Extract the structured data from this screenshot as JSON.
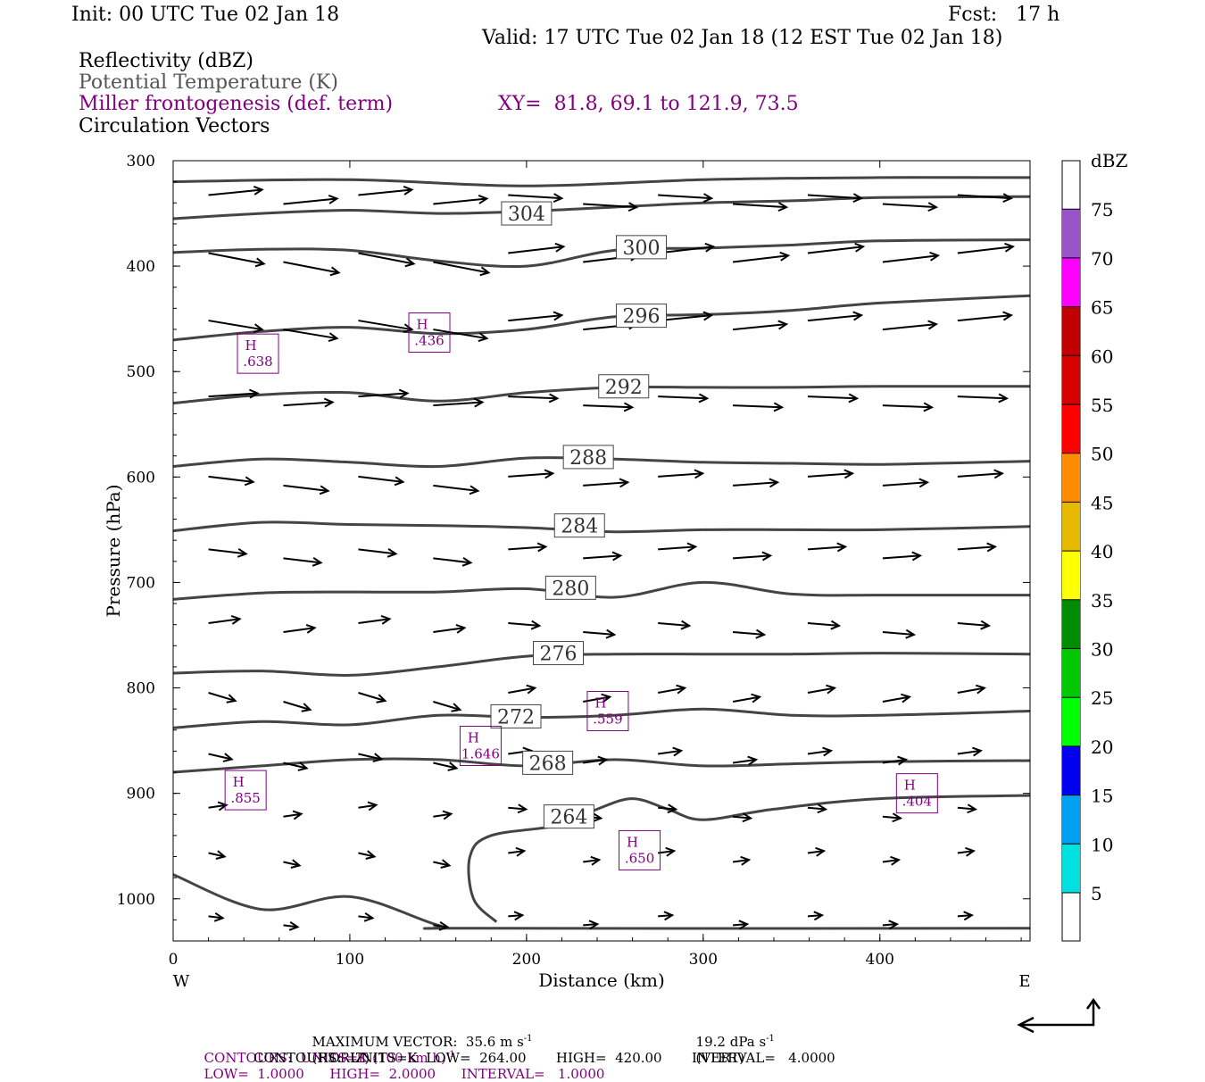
{
  "header": {
    "init": "Init: 00 UTC Tue 02 Jan 18",
    "fcst": "Fcst:   17 h",
    "valid": "Valid: 17 UTC Tue 02 Jan 18 (12 EST Tue 02 Jan 18)"
  },
  "fields": {
    "reflectivity": "Reflectivity (dBZ)",
    "theta": "Potential Temperature (K)",
    "frontogenesis": "Miller frontogenesis (def. term)",
    "xy": "XY=  81.8, 69.1 to 121.9, 73.5",
    "circulation": "Circulation Vectors"
  },
  "footer": {
    "max_vector": "MAXIMUM VECTOR:  35.6 m s",
    "max_vector_exp": "-1",
    "max_vector_horiz": "(HORIZ)",
    "max_vector_vert": "19.2 dPa s",
    "max_vector_vert_exp": "-1",
    "max_vector_vert_label": "(VERT)",
    "contours1_a": "CONTOURS:  UNITS=K (100 km h)",
    "contours1_exp": "-1",
    "contours1_b": "LOW=  1.0000      HIGH=  2.0000      INTERVAL=   1.0000",
    "contours2": "CONTOURS:  UNITS=K  LOW=  264.00       HIGH=  420.00       INTERVAL=   4.0000"
  },
  "colors": {
    "purple": "#800080",
    "theta_line": "#444444",
    "vector": "#000000"
  },
  "chart_data": {
    "type": "contour",
    "xlabel": "Distance (km)",
    "ylabel": "Pressure (hPa)",
    "xlim": [
      0,
      485
    ],
    "ylim": [
      1040,
      300
    ],
    "x_ticks": [
      0,
      100,
      200,
      300,
      400
    ],
    "y_ticks": [
      300,
      400,
      500,
      600,
      700,
      800,
      900,
      1000
    ],
    "x_end_labels": {
      "left": "W",
      "right": "E"
    },
    "theta_contours": {
      "units": "K",
      "levels": [
        {
          "label": "304",
          "label_at": [
            200,
            350
          ],
          "points": [
            [
              0,
              355
            ],
            [
              50,
              350
            ],
            [
              100,
              347
            ],
            [
              150,
              350
            ],
            [
              200,
              348
            ],
            [
              250,
              344
            ],
            [
              300,
              340
            ],
            [
              350,
              338
            ],
            [
              400,
              335
            ],
            [
              485,
              334
            ]
          ]
        },
        {
          "label": "300",
          "label_at": [
            265,
            382
          ],
          "points": [
            [
              0,
              387
            ],
            [
              50,
              384
            ],
            [
              100,
              385
            ],
            [
              150,
              395
            ],
            [
              200,
              400
            ],
            [
              250,
              385
            ],
            [
              300,
              383
            ],
            [
              350,
              380
            ],
            [
              400,
              376
            ],
            [
              485,
              375
            ]
          ]
        },
        {
          "label": "296",
          "label_at": [
            265,
            447
          ],
          "points": [
            [
              0,
              470
            ],
            [
              50,
              462
            ],
            [
              100,
              458
            ],
            [
              150,
              464
            ],
            [
              200,
              460
            ],
            [
              250,
              448
            ],
            [
              300,
              446
            ],
            [
              350,
              442
            ],
            [
              400,
              435
            ],
            [
              485,
              428
            ]
          ]
        },
        {
          "label": "292",
          "label_at": [
            255,
            514
          ],
          "points": [
            [
              0,
              530
            ],
            [
              50,
              522
            ],
            [
              100,
              520
            ],
            [
              150,
              528
            ],
            [
              200,
              520
            ],
            [
              250,
              515
            ],
            [
              300,
              515
            ],
            [
              350,
              515
            ],
            [
              400,
              514
            ],
            [
              485,
              514
            ]
          ]
        },
        {
          "label": "288",
          "label_at": [
            235,
            581
          ],
          "points": [
            [
              0,
              590
            ],
            [
              50,
              583
            ],
            [
              100,
              586
            ],
            [
              150,
              590
            ],
            [
              200,
              582
            ],
            [
              250,
              583
            ],
            [
              300,
              586
            ],
            [
              350,
              587
            ],
            [
              400,
              588
            ],
            [
              485,
              585
            ]
          ]
        },
        {
          "label": "284",
          "label_at": [
            230,
            646
          ],
          "points": [
            [
              0,
              651
            ],
            [
              50,
              643
            ],
            [
              100,
              645
            ],
            [
              150,
              646
            ],
            [
              200,
              648
            ],
            [
              250,
              652
            ],
            [
              300,
              650
            ],
            [
              350,
              650
            ],
            [
              400,
              650
            ],
            [
              485,
              647
            ]
          ]
        },
        {
          "label": "280",
          "label_at": [
            225,
            705
          ],
          "points": [
            [
              0,
              716
            ],
            [
              50,
              710
            ],
            [
              100,
              709
            ],
            [
              150,
              709
            ],
            [
              200,
              706
            ],
            [
              250,
              714
            ],
            [
              300,
              700
            ],
            [
              350,
              711
            ],
            [
              400,
              712
            ],
            [
              485,
              712
            ]
          ]
        },
        {
          "label": "276",
          "label_at": [
            218,
            767
          ],
          "points": [
            [
              0,
              786
            ],
            [
              50,
              784
            ],
            [
              100,
              788
            ],
            [
              150,
              780
            ],
            [
              200,
              770
            ],
            [
              250,
              768
            ],
            [
              300,
              768
            ],
            [
              350,
              768
            ],
            [
              400,
              767
            ],
            [
              485,
              768
            ]
          ]
        },
        {
          "label": "272",
          "label_at": [
            194,
            827
          ],
          "points": [
            [
              0,
              838
            ],
            [
              50,
              832
            ],
            [
              100,
              835
            ],
            [
              150,
              826
            ],
            [
              200,
              828
            ],
            [
              250,
              826
            ],
            [
              300,
              820
            ],
            [
              350,
              826
            ],
            [
              400,
              826
            ],
            [
              485,
              822
            ]
          ]
        },
        {
          "label": "268",
          "label_at": [
            212,
            871
          ],
          "points": [
            [
              0,
              880
            ],
            [
              50,
              874
            ],
            [
              100,
              868
            ],
            [
              150,
              868
            ],
            [
              200,
              874
            ],
            [
              250,
              868
            ],
            [
              300,
              874
            ],
            [
              350,
              872
            ],
            [
              400,
              870
            ],
            [
              485,
              869
            ]
          ]
        },
        {
          "label": "264",
          "label_at": [
            224,
            922
          ],
          "points": [
            [
              0,
              977
            ],
            [
              50,
              1010
            ],
            [
              100,
              998
            ],
            [
              150,
              1025
            ],
            [
              170,
              1028
            ],
            [
              485,
              1028
            ]
          ]
        }
      ],
      "extra_264_branch": [
        [
          183,
          1022
        ],
        [
          170,
          1000
        ],
        [
          168,
          960
        ],
        [
          180,
          940
        ],
        [
          220,
          930
        ],
        [
          240,
          915
        ],
        [
          260,
          905
        ],
        [
          280,
          915
        ],
        [
          300,
          925
        ],
        [
          340,
          915
        ],
        [
          400,
          905
        ],
        [
          485,
          902
        ]
      ]
    },
    "frontogenesis_maxima": [
      {
        "label": "H",
        "value": ".638",
        "x": 48,
        "p": 483
      },
      {
        "label": "H",
        "value": ".436",
        "x": 145,
        "p": 463
      },
      {
        "label": "H",
        "value": ".559",
        "x": 246,
        "p": 822
      },
      {
        "label": "H",
        "value": "1.646",
        "x": 174,
        "p": 855
      },
      {
        "label": "H",
        "value": ".855",
        "x": 41,
        "p": 897
      },
      {
        "label": "H",
        "value": ".650",
        "x": 264,
        "p": 954
      },
      {
        "label": "H",
        "value": ".404",
        "x": 421,
        "p": 900
      }
    ],
    "colorbar": {
      "units": "dBZ",
      "ticks": [
        "5",
        "10",
        "15",
        "20",
        "25",
        "30",
        "35",
        "40",
        "45",
        "50",
        "55",
        "60",
        "65",
        "70",
        "75"
      ],
      "colors": [
        "#00e0e0",
        "#00a0f0",
        "#0000f0",
        "#00ff00",
        "#00c800",
        "#008c00",
        "#ffff00",
        "#e6b800",
        "#ff8c00",
        "#ff0000",
        "#d60000",
        "#c00000",
        "#ff00ff",
        "#9955c8"
      ]
    }
  }
}
